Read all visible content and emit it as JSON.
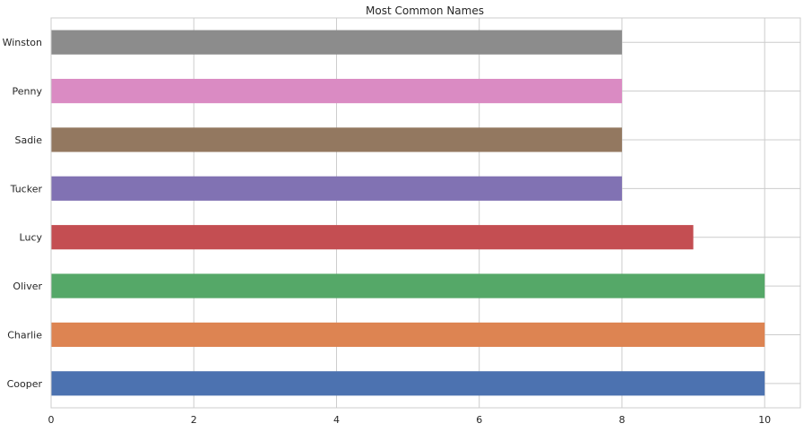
{
  "chart_data": {
    "type": "bar",
    "orientation": "horizontal",
    "title": "Most Common Names",
    "xlabel": "",
    "ylabel": "",
    "categories": [
      "Cooper",
      "Charlie",
      "Oliver",
      "Lucy",
      "Tucker",
      "Sadie",
      "Penny",
      "Winston"
    ],
    "values": [
      10,
      10,
      10,
      9,
      8,
      8,
      8,
      8
    ],
    "colors": [
      "#4c72b0",
      "#dd8452",
      "#55a868",
      "#c44e52",
      "#8172b3",
      "#937860",
      "#da8bc3",
      "#8c8c8c"
    ],
    "xlim": [
      0,
      10.5
    ],
    "xticks": [
      0,
      2,
      4,
      6,
      8,
      10
    ],
    "grid": true,
    "legend": "none"
  }
}
